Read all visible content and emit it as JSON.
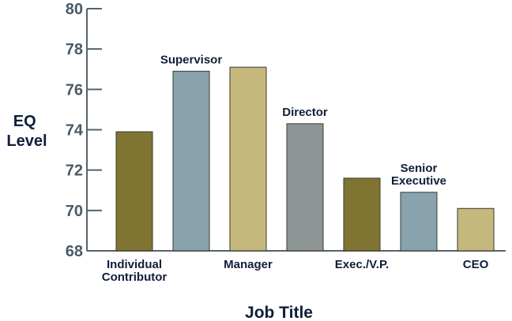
{
  "chart_data": {
    "type": "bar",
    "categories": [
      "Individual Contributor",
      "Supervisor",
      "Manager",
      "Director",
      "Exec./V.P.",
      "Senior Executive",
      "CEO"
    ],
    "label_lines": [
      [
        "Individual",
        "Contributor"
      ],
      [
        "Supervisor"
      ],
      [
        "Manager"
      ],
      [
        "Director"
      ],
      [
        "Exec./V.P."
      ],
      [
        "Senior",
        "Executive"
      ],
      [
        "CEO"
      ]
    ],
    "label_position": [
      "below",
      "above",
      "below",
      "above",
      "below",
      "above",
      "below"
    ],
    "values": [
      73.9,
      76.9,
      77.1,
      74.3,
      71.6,
      70.9,
      70.1
    ],
    "colors": [
      "#807432",
      "#88a3ad",
      "#c5b87c",
      "#8d9694",
      "#807432",
      "#88a3ad",
      "#c5b87c"
    ],
    "ylabel": [
      "EQ",
      "Level"
    ],
    "xlabel": "Job Title",
    "ylim": [
      68,
      80
    ],
    "yticks": [
      "68",
      "70",
      "72",
      "74",
      "76",
      "78",
      "80"
    ]
  }
}
